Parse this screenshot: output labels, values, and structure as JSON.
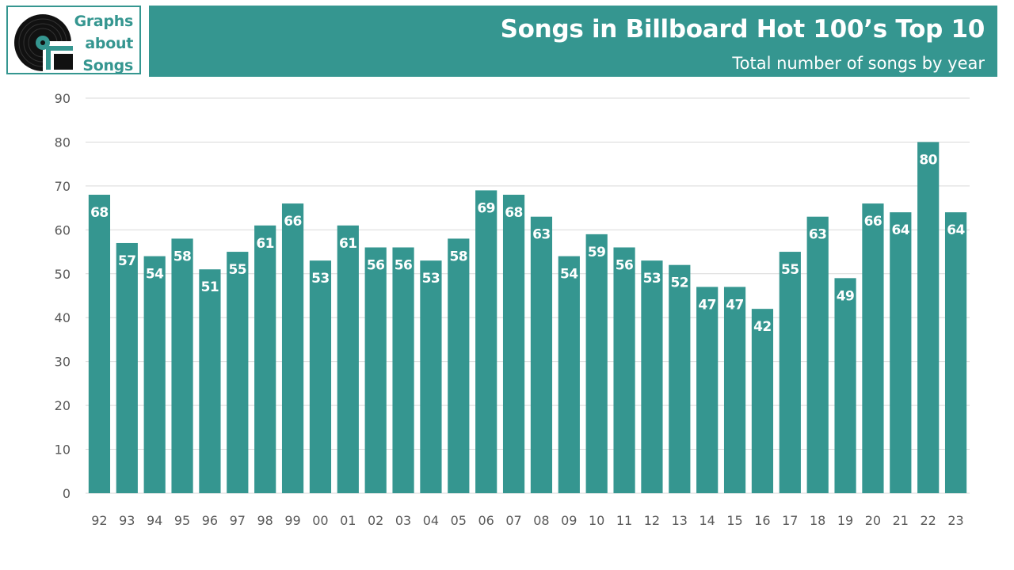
{
  "logo": {
    "lines": [
      "Graphs",
      "about",
      "Songs"
    ],
    "icon": "vinyl-record-icon"
  },
  "header": {
    "title": "Songs in Billboard Hot 100’s Top 10",
    "subtitle": "Total number of songs by year"
  },
  "colors": {
    "accent": "#359690",
    "grid": "#d9d9d9",
    "axis_text": "#595959",
    "bar_label": "#ffffff"
  },
  "chart_data": {
    "type": "bar",
    "categories": [
      "92",
      "93",
      "94",
      "95",
      "96",
      "97",
      "98",
      "99",
      "00",
      "01",
      "02",
      "03",
      "04",
      "05",
      "06",
      "07",
      "08",
      "09",
      "10",
      "11",
      "12",
      "13",
      "14",
      "15",
      "16",
      "17",
      "18",
      "19",
      "20",
      "21",
      "22",
      "23"
    ],
    "values": [
      68,
      57,
      54,
      58,
      51,
      55,
      61,
      66,
      53,
      61,
      56,
      56,
      53,
      58,
      69,
      68,
      63,
      54,
      59,
      56,
      53,
      52,
      47,
      47,
      42,
      55,
      63,
      49,
      66,
      64,
      80,
      64
    ],
    "ylim": [
      0,
      90
    ],
    "yticks": [
      0,
      10,
      20,
      30,
      40,
      50,
      60,
      70,
      80,
      90
    ],
    "grid": true,
    "data_labels": true,
    "legend": "none"
  }
}
